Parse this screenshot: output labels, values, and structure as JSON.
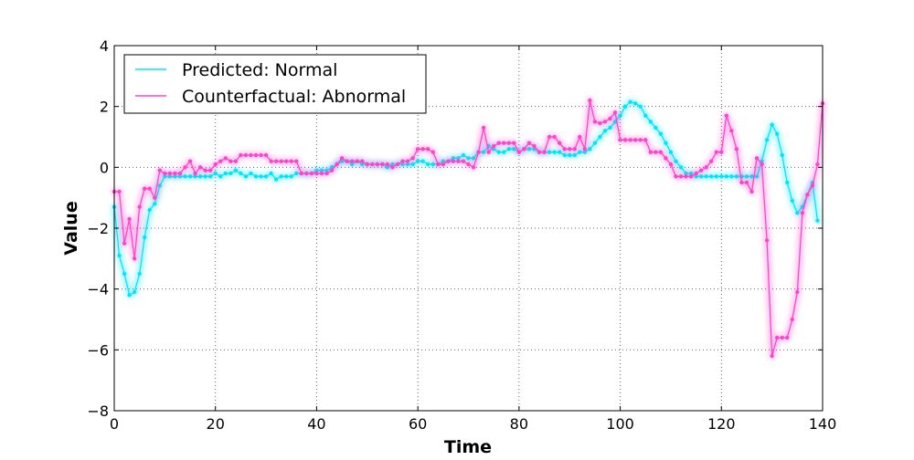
{
  "chart_data": {
    "type": "line",
    "title": "",
    "xlabel": "Time",
    "ylabel": "Value",
    "xlim": [
      0,
      140
    ],
    "ylim": [
      -8,
      4
    ],
    "x_ticks": [
      0,
      20,
      40,
      60,
      80,
      100,
      120,
      140
    ],
    "y_ticks": [
      -8,
      -6,
      -4,
      -2,
      0,
      2,
      4
    ],
    "x_tick_labels": [
      "0",
      "20",
      "40",
      "60",
      "80",
      "100",
      "120",
      "140"
    ],
    "y_tick_labels": [
      "−8",
      "−6",
      "−4",
      "−2",
      "0",
      "2",
      "4"
    ],
    "grid": true,
    "legend_position": "top-left",
    "series": [
      {
        "name": "Predicted: Normal",
        "color": "#00e5ff",
        "values": [
          -1.3,
          -2.9,
          -3.5,
          -4.2,
          -4.1,
          -3.5,
          -2.3,
          -1.4,
          -1.2,
          -0.6,
          -0.3,
          -0.3,
          -0.3,
          -0.3,
          -0.3,
          -0.3,
          -0.3,
          -0.3,
          -0.3,
          -0.3,
          -0.2,
          -0.3,
          -0.2,
          -0.2,
          -0.1,
          -0.2,
          -0.3,
          -0.2,
          -0.3,
          -0.3,
          -0.3,
          -0.2,
          -0.4,
          -0.3,
          -0.3,
          -0.3,
          -0.2,
          -0.2,
          -0.2,
          -0.2,
          -0.1,
          -0.1,
          -0.1,
          0.0,
          0.1,
          0.2,
          0.2,
          0.1,
          0.2,
          0.1,
          0.1,
          0.1,
          0.1,
          0.1,
          0.0,
          0.1,
          0.1,
          0.1,
          0.1,
          0.1,
          0.2,
          0.2,
          0.1,
          0.1,
          0.1,
          0.2,
          0.2,
          0.3,
          0.3,
          0.4,
          0.3,
          0.3,
          0.5,
          0.5,
          0.7,
          0.6,
          0.5,
          0.5,
          0.6,
          0.6,
          0.5,
          0.6,
          0.6,
          0.6,
          0.5,
          0.5,
          0.5,
          0.5,
          0.5,
          0.4,
          0.4,
          0.4,
          0.5,
          0.5,
          0.6,
          0.8,
          1.0,
          1.2,
          1.3,
          1.5,
          1.7,
          2.0,
          2.15,
          2.1,
          2.0,
          1.7,
          1.5,
          1.3,
          1.1,
          0.8,
          0.5,
          0.2,
          0.0,
          -0.2,
          -0.2,
          -0.3,
          -0.3,
          -0.3,
          -0.3,
          -0.3,
          -0.3,
          -0.3,
          -0.3,
          -0.3,
          -0.3,
          -0.3,
          -0.3,
          -0.3,
          0.2,
          0.9,
          1.4,
          1.1,
          0.4,
          -0.5,
          -1.1,
          -1.5,
          -1.3,
          -0.9,
          -0.5,
          -1.75
        ]
      },
      {
        "name": "Counterfactual: Abnormal",
        "color": "#ff44cc",
        "values": [
          -0.8,
          -0.8,
          -2.5,
          -1.7,
          -3.0,
          -1.3,
          -0.7,
          -0.7,
          -1.0,
          -0.1,
          -0.2,
          -0.2,
          -0.2,
          -0.2,
          0.0,
          0.2,
          -0.2,
          0.0,
          -0.1,
          -0.1,
          0.1,
          0.2,
          0.3,
          0.2,
          0.2,
          0.4,
          0.4,
          0.4,
          0.4,
          0.4,
          0.4,
          0.2,
          0.2,
          0.2,
          0.2,
          0.2,
          0.2,
          -0.2,
          -0.2,
          -0.2,
          -0.2,
          -0.2,
          -0.2,
          -0.1,
          0.1,
          0.3,
          0.2,
          0.2,
          0.2,
          0.2,
          0.1,
          0.1,
          0.1,
          0.1,
          0.1,
          0.0,
          0.1,
          0.2,
          0.2,
          0.3,
          0.6,
          0.6,
          0.6,
          0.5,
          0.1,
          0.1,
          0.2,
          0.2,
          0.2,
          0.2,
          0.1,
          0.0,
          0.5,
          1.3,
          0.5,
          0.7,
          0.8,
          0.8,
          0.8,
          0.8,
          0.5,
          0.6,
          0.8,
          0.7,
          0.5,
          0.5,
          1.0,
          1.0,
          0.8,
          0.6,
          0.6,
          0.6,
          1.0,
          0.6,
          2.2,
          1.5,
          1.45,
          1.5,
          1.6,
          1.8,
          0.9,
          0.9,
          0.9,
          0.9,
          0.9,
          0.9,
          0.5,
          0.5,
          0.5,
          0.3,
          0.1,
          -0.3,
          -0.3,
          -0.3,
          -0.3,
          -0.2,
          -0.1,
          0.0,
          0.2,
          0.5,
          0.5,
          1.7,
          1.2,
          0.6,
          -0.5,
          -0.5,
          -0.8,
          0.3,
          0.1,
          -2.4,
          -6.2,
          -5.6,
          -5.6,
          -5.6,
          -5.0,
          -4.1,
          -1.5,
          -0.9,
          -0.6,
          0.1,
          2.1
        ]
      }
    ]
  }
}
